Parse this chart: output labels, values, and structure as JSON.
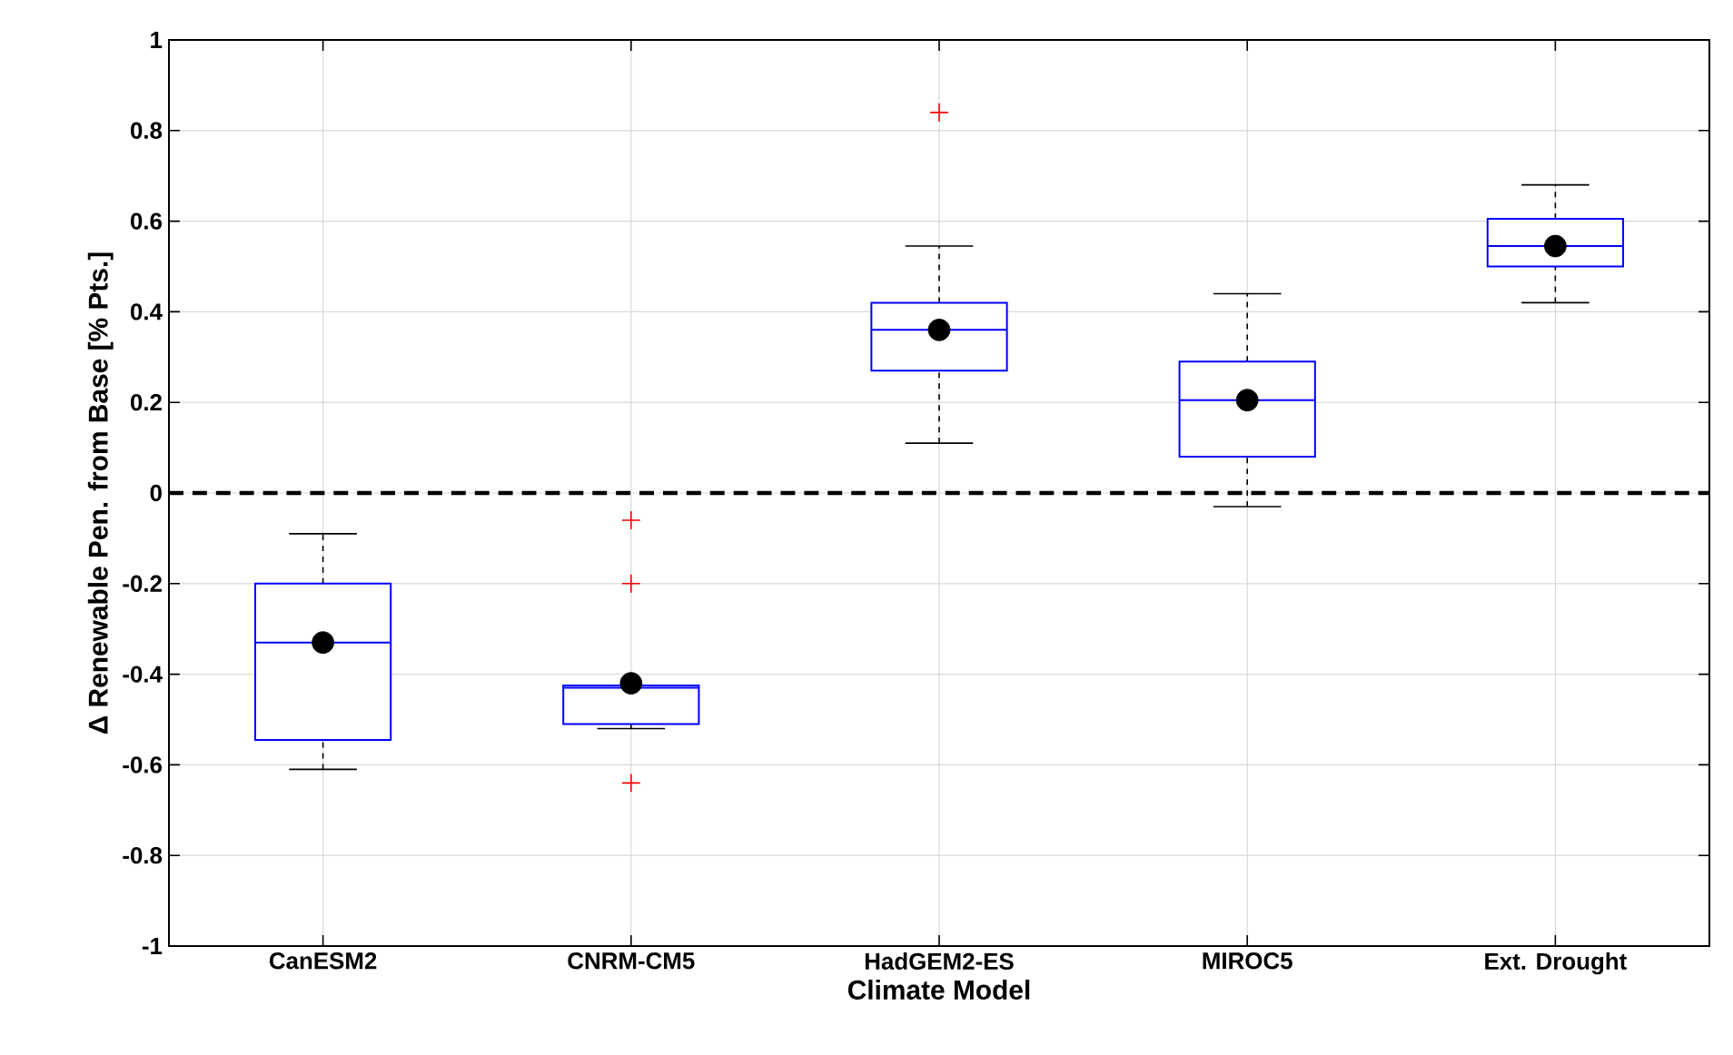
{
  "chart_data": {
    "type": "box",
    "xlabel": "Climate Model",
    "ylabel": "Δ Renewable Pen. from Base [% Pts.]",
    "categories": [
      "CanESM2",
      "CNRM-CM5",
      "HadGEM2-ES",
      "MIROC5",
      "Ext. Drought"
    ],
    "color": "#0000ff",
    "grid": true,
    "ylim": [
      -1,
      1
    ],
    "yticks": [
      -1,
      -0.8,
      -0.6,
      -0.4,
      -0.2,
      0,
      0.2,
      0.4,
      0.6,
      0.8,
      1
    ],
    "boxes": [
      {
        "low": -0.61,
        "q1": -0.545,
        "median": -0.33,
        "q3": -0.2,
        "high": -0.09,
        "mean": -0.33
      },
      {
        "low": -0.52,
        "q1": -0.51,
        "median": -0.43,
        "q3": -0.425,
        "high": -0.425,
        "mean": -0.42,
        "outliers": [
          -0.06,
          -0.2,
          -0.64
        ]
      },
      {
        "low": 0.11,
        "q1": 0.27,
        "median": 0.36,
        "q3": 0.42,
        "high": 0.545,
        "mean": 0.36,
        "outliers": [
          0.84
        ]
      },
      {
        "low": -0.03,
        "q1": 0.08,
        "median": 0.205,
        "q3": 0.29,
        "high": 0.44,
        "mean": 0.205
      },
      {
        "low": 0.42,
        "q1": 0.5,
        "median": 0.545,
        "q3": 0.605,
        "high": 0.68,
        "mean": 0.545
      }
    ],
    "ref_lines": [
      {
        "axis": "y",
        "value": 0,
        "color": "#000000",
        "line_style": "dashed"
      }
    ]
  }
}
